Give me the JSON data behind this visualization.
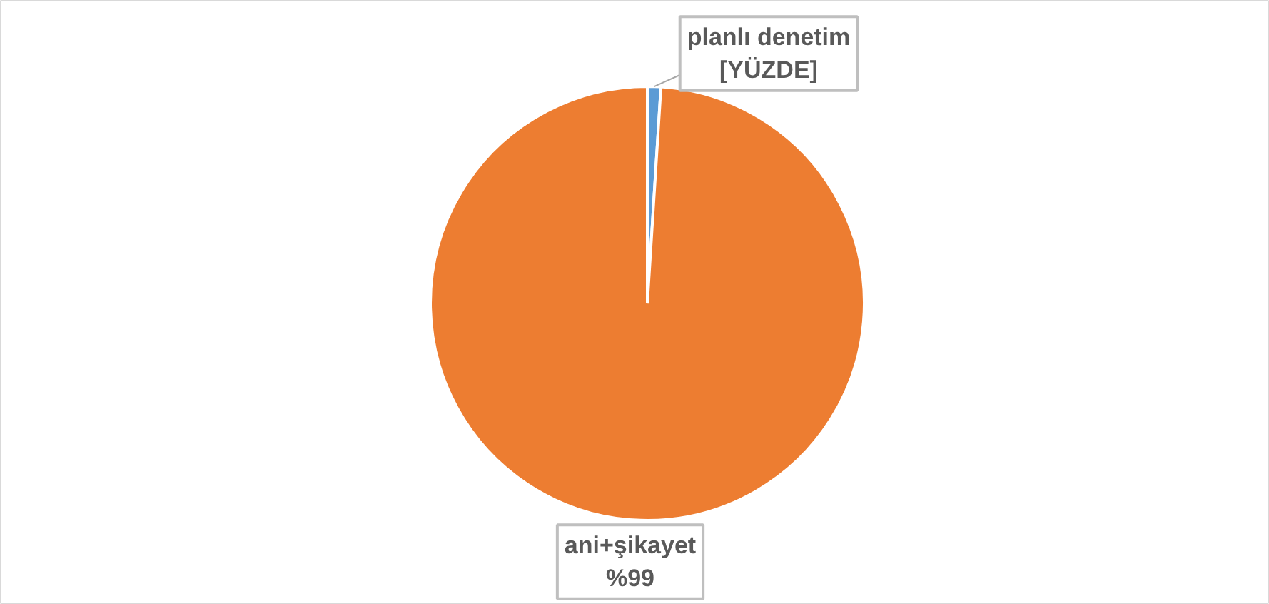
{
  "chart_data": {
    "type": "pie",
    "categories": [
      "planlı denetim",
      "ani+şikayet"
    ],
    "values": [
      1,
      99
    ],
    "colors": [
      "#5b9bd5",
      "#ed7d31"
    ],
    "value_labels": [
      "[YÜZDE]",
      "%99"
    ]
  }
}
